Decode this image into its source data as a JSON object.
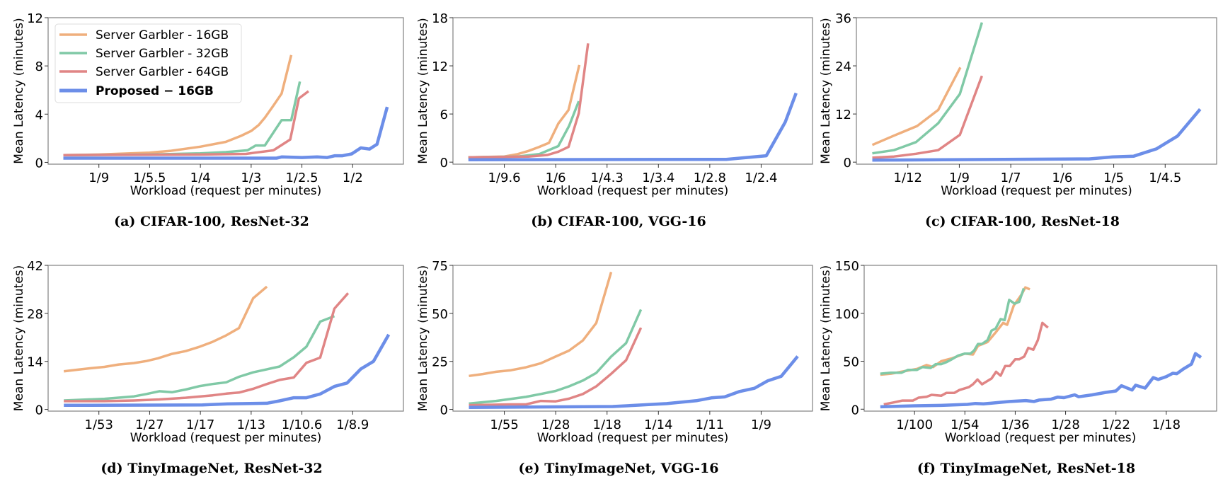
{
  "legend": {
    "placement": "upper-left of panel (a)",
    "entries": [
      {
        "label": "Server Garbler - 16GB",
        "color": "#EFAF7D",
        "bold": false
      },
      {
        "label": "Server Garbler - 32GB",
        "color": "#80C9A6",
        "bold": false
      },
      {
        "label": "Server Garbler - 64GB",
        "color": "#E08585",
        "bold": false
      },
      {
        "label": "Proposed  −  16GB",
        "color": "#6C8EE8",
        "bold": true
      }
    ]
  },
  "chart_data": [
    {
      "type": "line",
      "caption": "(a) CIFAR-100, ResNet-32",
      "xlabel": "Workload (request per minutes)",
      "ylabel": "Mean Latency (minutes)",
      "x_scale": "categorical tick positions",
      "x_ticks": [
        "1/9",
        "1/5.5",
        "1/4",
        "1/3",
        "1/2.5",
        "1/2"
      ],
      "xlim": [
        0,
        7
      ],
      "ylim": [
        -0.15,
        12
      ],
      "y_ticks": [
        0,
        4,
        8,
        12
      ],
      "grid": false,
      "series": [
        {
          "name": "Server Garbler - 16GB",
          "x": [
            0.3,
            1,
            2,
            2.4,
            3,
            3.5,
            3.8,
            4.0,
            4.15,
            4.27,
            4.42,
            4.6,
            4.79
          ],
          "y": [
            0.6,
            0.65,
            0.8,
            0.95,
            1.3,
            1.7,
            2.2,
            2.6,
            3.1,
            3.7,
            4.6,
            5.7,
            8.9
          ]
        },
        {
          "name": "Server Garbler - 32GB",
          "x": [
            0.3,
            2,
            3,
            3.5,
            3.93,
            4.09,
            4.27,
            4.6,
            4.79,
            4.96
          ],
          "y": [
            0.6,
            0.65,
            0.75,
            0.85,
            1.0,
            1.4,
            1.4,
            3.5,
            3.5,
            6.7
          ]
        },
        {
          "name": "Server Garbler - 64GB",
          "x": [
            0.3,
            3,
            3.9,
            4.07,
            4.44,
            4.77,
            4.94,
            5.13
          ],
          "y": [
            0.6,
            0.65,
            0.7,
            0.8,
            1.0,
            1.9,
            5.3,
            5.9
          ]
        },
        {
          "name": "Proposed  −  16GB",
          "x": [
            0.3,
            4.5,
            4.6,
            5,
            5.3,
            5.5,
            5.65,
            5.8,
            5.98,
            6.16,
            6.33,
            6.48,
            6.68
          ],
          "y": [
            0.35,
            0.35,
            0.45,
            0.4,
            0.45,
            0.4,
            0.55,
            0.55,
            0.7,
            1.2,
            1.1,
            1.5,
            4.6
          ]
        }
      ]
    },
    {
      "type": "line",
      "caption": "(b) CIFAR-100, VGG-16",
      "xlabel": "Workload (request per minutes)",
      "ylabel": "Mean Latency (minutes)",
      "x_scale": "categorical tick positions",
      "x_ticks": [
        "1/9.6",
        "1/6",
        "1/4.3",
        "1/3.4",
        "1/2.8",
        "1/2.4"
      ],
      "xlim": [
        0,
        7
      ],
      "ylim": [
        -0.25,
        18
      ],
      "y_ticks": [
        0,
        6,
        12,
        18
      ],
      "grid": false,
      "series": [
        {
          "name": "Server Garbler - 16GB",
          "x": [
            0.3,
            1,
            1.26,
            1.47,
            1.68,
            1.87,
            2.05,
            2.25,
            2.46
          ],
          "y": [
            0.6,
            0.7,
            1.0,
            1.4,
            1.9,
            2.4,
            4.8,
            6.5,
            12.1
          ]
        },
        {
          "name": "Server Garbler - 32GB",
          "x": [
            0.3,
            1.26,
            1.68,
            2.05,
            2.26,
            2.45
          ],
          "y": [
            0.6,
            0.7,
            1.0,
            2.0,
            4.5,
            7.6
          ]
        },
        {
          "name": "Server Garbler - 64GB",
          "x": [
            0.3,
            1.47,
            1.84,
            2.05,
            2.25,
            2.45,
            2.63
          ],
          "y": [
            0.6,
            0.7,
            0.9,
            1.3,
            1.9,
            6.1,
            14.8
          ]
        },
        {
          "name": "Proposed  −  16GB",
          "x": [
            0.3,
            5.32,
            6.1,
            6.47,
            6.68
          ],
          "y": [
            0.3,
            0.35,
            0.8,
            5.0,
            8.6
          ]
        }
      ]
    },
    {
      "type": "line",
      "caption": "(c) CIFAR-100, ResNet-18",
      "xlabel": "Workload (request per minutes)",
      "ylabel": "Mean Latency (minutes)",
      "x_scale": "categorical tick positions",
      "x_ticks": [
        "1/12",
        "1/9",
        "1/7",
        "1/6",
        "1/5",
        "1/4.5"
      ],
      "xlim": [
        0,
        7
      ],
      "ylim": [
        -0.5,
        36
      ],
      "y_ticks": [
        0,
        12,
        24,
        36
      ],
      "grid": false,
      "series": [
        {
          "name": "Server Garbler - 16GB",
          "x": [
            0.31,
            0.73,
            1.18,
            1.59,
            2.02
          ],
          "y": [
            4.3,
            6.6,
            9.0,
            13.0,
            23.6
          ]
        },
        {
          "name": "Server Garbler - 32GB",
          "x": [
            0.31,
            0.73,
            1.16,
            1.59,
            2.01,
            2.44
          ],
          "y": [
            2.2,
            3.0,
            5.0,
            9.7,
            17.0,
            34.8
          ]
        },
        {
          "name": "Server Garbler - 64GB",
          "x": [
            0.31,
            0.73,
            1.16,
            1.59,
            2.01,
            2.44
          ],
          "y": [
            1.1,
            1.4,
            2.1,
            3.0,
            6.8,
            21.5
          ]
        },
        {
          "name": "Proposed  −  16GB",
          "x": [
            0.31,
            4.52,
            4.98,
            5.39,
            5.83,
            6.24,
            6.68
          ],
          "y": [
            0.5,
            0.8,
            1.3,
            1.5,
            3.3,
            6.5,
            13.2
          ]
        }
      ]
    },
    {
      "type": "line",
      "caption": "(d) TinyImageNet, ResNet-32",
      "xlabel": "Workload (request per minutes)",
      "ylabel": "Mean Latency (minutes)",
      "x_scale": "categorical tick positions",
      "x_ticks": [
        "1/53",
        "1/27",
        "1/17",
        "1/13",
        "1/10.6",
        "1/8.9"
      ],
      "xlim": [
        0,
        7
      ],
      "ylim": [
        -0.5,
        42
      ],
      "y_ticks": [
        0,
        14,
        28,
        42
      ],
      "grid": false,
      "series": [
        {
          "name": "Server Garbler - 16GB",
          "x": [
            0.31,
            0.59,
            0.84,
            1.11,
            1.39,
            1.69,
            1.94,
            2.16,
            2.44,
            2.71,
            2.99,
            3.24,
            3.51,
            3.76,
            4.04,
            4.31
          ],
          "y": [
            11.1,
            11.6,
            12.0,
            12.4,
            13.1,
            13.5,
            14.1,
            14.9,
            16.2,
            17.0,
            18.3,
            19.7,
            21.6,
            23.7,
            32.4,
            35.8
          ]
        },
        {
          "name": "Server Garbler - 32GB",
          "x": [
            0.31,
            1.11,
            1.69,
            1.94,
            2.19,
            2.44,
            2.71,
            2.99,
            3.24,
            3.51,
            3.76,
            4.04,
            4.31,
            4.56,
            4.84,
            5.09,
            5.36,
            5.64
          ],
          "y": [
            2.6,
            3.1,
            3.8,
            4.5,
            5.3,
            5.0,
            5.8,
            6.8,
            7.4,
            7.9,
            9.5,
            10.8,
            11.7,
            12.5,
            15.2,
            18.3,
            25.6,
            27.2
          ]
        },
        {
          "name": "Server Garbler - 64GB",
          "x": [
            0.31,
            1.11,
            1.69,
            2.19,
            2.71,
            3.24,
            3.51,
            3.76,
            4.04,
            4.31,
            4.56,
            4.84,
            5.09,
            5.36,
            5.64,
            5.91
          ],
          "y": [
            2.4,
            2.4,
            2.6,
            2.9,
            3.4,
            4.1,
            4.6,
            4.9,
            6.0,
            7.4,
            8.6,
            9.3,
            13.6,
            15.1,
            29.4,
            33.9
          ]
        },
        {
          "name": "Proposed  −  16GB",
          "x": [
            0.31,
            3.04,
            3.54,
            4.31,
            4.56,
            4.84,
            5.09,
            5.36,
            5.64,
            5.89,
            6.16,
            6.41,
            6.71
          ],
          "y": [
            1.2,
            1.3,
            1.6,
            1.8,
            2.5,
            3.4,
            3.4,
            4.5,
            6.7,
            7.7,
            11.8,
            14.0,
            21.8
          ]
        }
      ]
    },
    {
      "type": "line",
      "caption": "(e) TinyImageNet, VGG-16",
      "xlabel": "Workload (request per minutes)",
      "ylabel": "Mean Latency (minutes)",
      "x_scale": "categorical tick positions",
      "x_ticks": [
        "1/55",
        "1/28",
        "1/18",
        "1/14",
        "1/11",
        "1/9"
      ],
      "xlim": [
        0,
        7
      ],
      "ylim": [
        -0.9,
        75
      ],
      "y_ticks": [
        0,
        25,
        50,
        75
      ],
      "grid": false,
      "series": [
        {
          "name": "Server Garbler - 16GB",
          "x": [
            0.31,
            0.58,
            0.84,
            1.13,
            1.42,
            1.71,
            2,
            2.26,
            2.53,
            2.79,
            3.08
          ],
          "y": [
            17.4,
            18.4,
            19.6,
            20.4,
            21.9,
            24.0,
            27.5,
            30.6,
            35.9,
            45.0,
            71.5
          ]
        },
        {
          "name": "Server Garbler - 32GB",
          "x": [
            0.31,
            0.84,
            1.42,
            1.71,
            2,
            2.26,
            2.53,
            2.79,
            3.08,
            3.37,
            3.66
          ],
          "y": [
            3.0,
            4.4,
            6.5,
            8.0,
            9.6,
            12.0,
            15.0,
            19.0,
            27.5,
            34.5,
            52
          ]
        },
        {
          "name": "Server Garbler - 64GB",
          "x": [
            0.31,
            1.13,
            1.42,
            1.71,
            2,
            2.26,
            2.53,
            2.79,
            3.08,
            3.37,
            3.66
          ],
          "y": [
            2.2,
            2.6,
            2.6,
            4.4,
            4.2,
            5.6,
            8.0,
            12.0,
            18.5,
            25.6,
            42.5
          ]
        },
        {
          "name": "Proposed  −  16GB",
          "x": [
            0.31,
            3.11,
            4.16,
            4.74,
            5.03,
            5.29,
            5.58,
            5.87,
            6.13,
            6.39,
            6.71
          ],
          "y": [
            1.0,
            1.5,
            3.0,
            4.5,
            6.0,
            6.5,
            9.3,
            11.0,
            14.9,
            17.2,
            27.6
          ]
        }
      ]
    },
    {
      "type": "line",
      "caption": "(f) TinyImageNet, ResNet-18",
      "xlabel": "Workload (request per minutes)",
      "ylabel": "Mean Latency (minutes)",
      "x_scale": "categorical tick positions",
      "x_ticks": [
        "1/100",
        "1/54",
        "1/36",
        "1/28",
        "1/22",
        "1/18"
      ],
      "xlim": [
        0,
        7
      ],
      "ylim": [
        -2,
        150
      ],
      "y_ticks": [
        0,
        50,
        100,
        150
      ],
      "grid": false,
      "series": [
        {
          "name": "Server Garbler - 16GB",
          "x": [
            0.32,
            0.53,
            0.74,
            1.05,
            1.24,
            1.37,
            1.53,
            1.74,
            2,
            2.16,
            2.26,
            2.45,
            2.61,
            2.76,
            2.84,
            2.97,
            3.13,
            3.2,
            3.29
          ],
          "y": [
            36,
            37,
            39,
            42,
            46,
            44,
            50,
            53,
            58,
            57,
            66,
            70,
            80,
            90,
            88,
            108,
            120,
            127,
            125
          ]
        },
        {
          "name": "Server Garbler - 32GB",
          "x": [
            0.32,
            0.53,
            0.74,
            0.87,
            1.05,
            1.16,
            1.32,
            1.42,
            1.53,
            1.63,
            1.74,
            1.87,
            2,
            2.11,
            2.18,
            2.26,
            2.34,
            2.45,
            2.53,
            2.61,
            2.71,
            2.79,
            2.88,
            2.99,
            3.08,
            3.17
          ],
          "y": [
            37,
            38,
            38,
            41,
            41,
            44,
            43,
            47,
            47,
            49,
            52,
            56,
            58,
            58,
            61,
            68,
            68,
            72,
            82,
            84,
            94,
            93,
            114,
            110,
            112,
            126
          ]
        },
        {
          "name": "Server Garbler - 64GB",
          "x": [
            0.39,
            0.58,
            0.76,
            0.97,
            1.08,
            1.24,
            1.34,
            1.53,
            1.63,
            1.79,
            1.89,
            2.08,
            2.16,
            2.25,
            2.34,
            2.53,
            2.62,
            2.71,
            2.8,
            2.89,
            3,
            3.08,
            3.18,
            3.26,
            3.36,
            3.45,
            3.54,
            3.65
          ],
          "y": [
            5,
            7,
            9,
            9,
            12,
            13,
            15,
            14,
            17,
            17,
            20,
            23,
            26,
            31,
            26,
            32,
            39,
            35,
            45,
            45,
            52,
            52,
            55,
            64,
            62,
            72,
            90,
            85
          ]
        },
        {
          "name": "Proposed  −  16GB",
          "x": [
            0.32,
            1,
            1.53,
            2.05,
            2.21,
            2.37,
            2.68,
            2.89,
            3.21,
            3.37,
            3.47,
            3.71,
            3.84,
            3.97,
            4.18,
            4.26,
            4.53,
            4.79,
            5,
            5.11,
            5.32,
            5.39,
            5.58,
            5.74,
            5.84,
            6,
            6.13,
            6.21,
            6.34,
            6.5,
            6.58,
            6.69
          ],
          "y": [
            2.5,
            3.5,
            4,
            5,
            6,
            5.5,
            7,
            8,
            9,
            8,
            9.5,
            10.5,
            12.5,
            12,
            15,
            13,
            15,
            17.5,
            19,
            24.5,
            20,
            25,
            22,
            33,
            31,
            34,
            37.5,
            37,
            42,
            47,
            58,
            54
          ]
        }
      ]
    }
  ]
}
